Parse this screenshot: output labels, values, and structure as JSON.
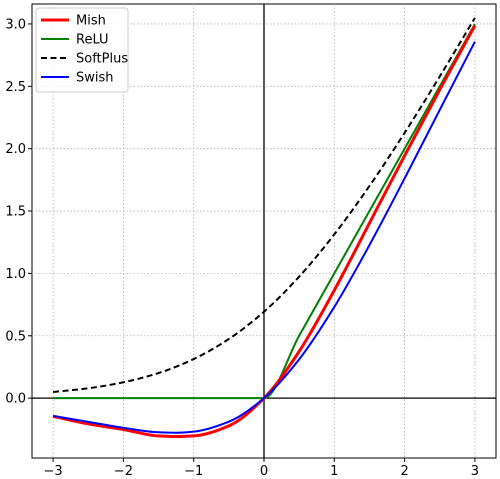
{
  "chart_data": {
    "type": "line",
    "title": "",
    "xlabel": "",
    "ylabel": "",
    "xlim": [
      -3.3,
      3.3
    ],
    "ylim": [
      -0.48,
      3.16
    ],
    "grid": true,
    "grid_style": "dotted",
    "zero_axes": true,
    "legend_position": "top-left",
    "x_ticks": [
      -3,
      -2,
      -1,
      0,
      1,
      2,
      3
    ],
    "x_tick_labels": [
      "−3",
      "−2",
      "−1",
      "0",
      "1",
      "2",
      "3"
    ],
    "y_ticks": [
      0.0,
      0.5,
      1.0,
      1.5,
      2.0,
      2.5,
      3.0
    ],
    "y_tick_labels": [
      "0.0",
      "0.5",
      "1.0",
      "1.5",
      "2.0",
      "2.5",
      "3.0"
    ],
    "x": [
      -3.0,
      -2.5,
      -2.0,
      -1.5,
      -1.25,
      -1.0,
      -0.5,
      0.0,
      0.5,
      1.0,
      1.5,
      2.0,
      2.5,
      3.0
    ],
    "series": [
      {
        "name": "Mish",
        "color": "#ff0000",
        "style": "solid",
        "width": 3,
        "values": [
          -0.146,
          -0.207,
          -0.252,
          -0.303,
          -0.308,
          -0.303,
          -0.222,
          0.0,
          0.375,
          0.865,
          1.404,
          1.944,
          2.473,
          2.987
        ]
      },
      {
        "name": "ReLU",
        "color": "#008000",
        "style": "solid",
        "width": 2,
        "values": [
          0.0,
          0.0,
          0.0,
          0.0,
          0.0,
          0.0,
          0.0,
          0.0,
          0.5,
          1.0,
          1.5,
          2.0,
          2.5,
          3.0
        ]
      },
      {
        "name": "SoftPlus",
        "color": "#000000",
        "style": "dashed",
        "width": 2,
        "values": [
          0.049,
          0.079,
          0.127,
          0.201,
          0.252,
          0.313,
          0.474,
          0.693,
          0.974,
          1.313,
          1.701,
          2.127,
          2.579,
          3.049
        ]
      },
      {
        "name": "Swish",
        "color": "#0000ff",
        "style": "solid",
        "width": 2,
        "values": [
          -0.142,
          -0.19,
          -0.238,
          -0.274,
          -0.278,
          -0.269,
          -0.189,
          0.0,
          0.311,
          0.731,
          1.227,
          1.762,
          2.311,
          2.858
        ]
      }
    ]
  }
}
